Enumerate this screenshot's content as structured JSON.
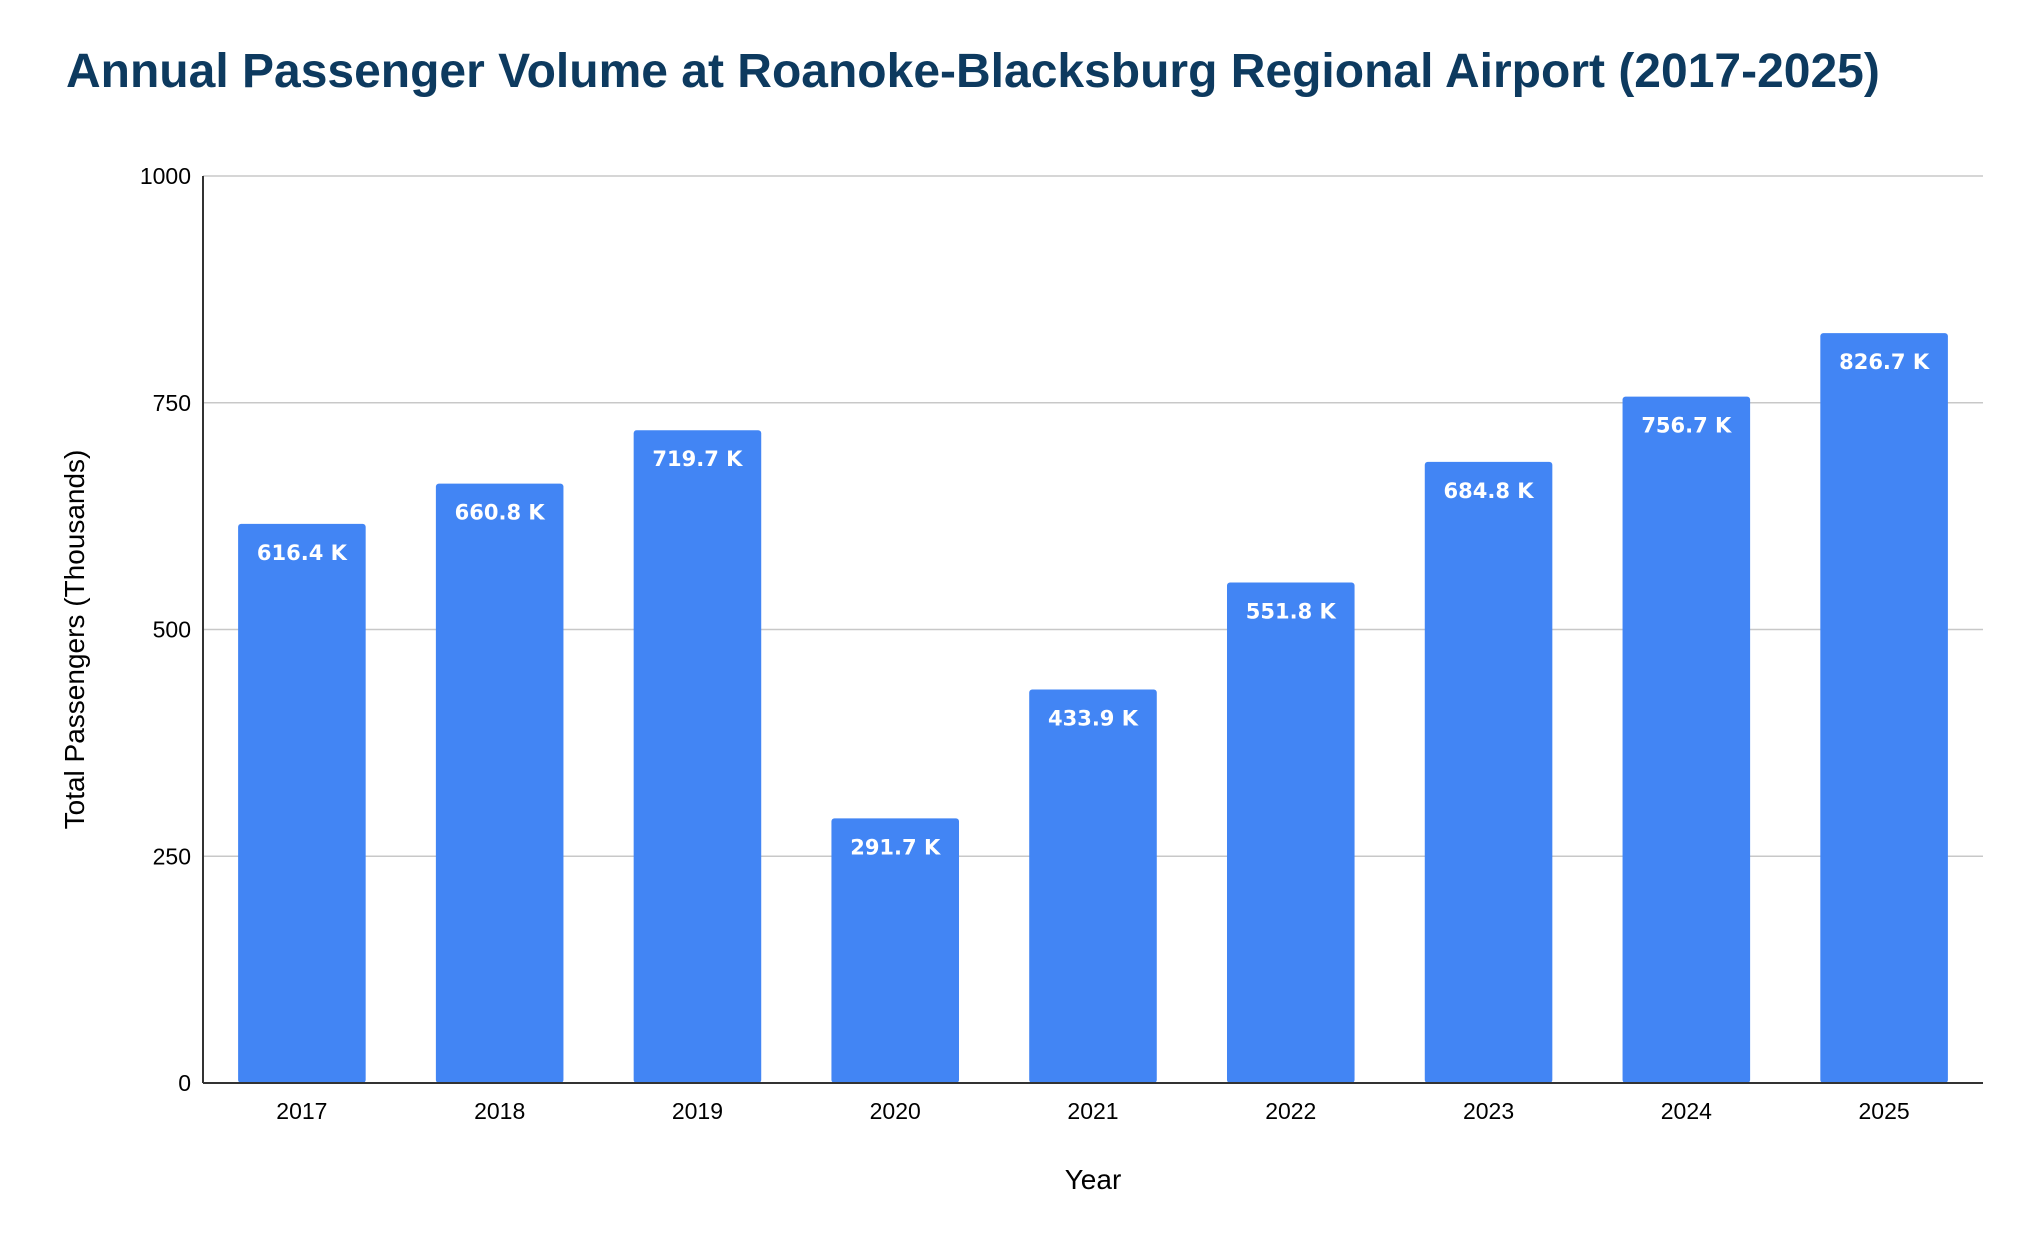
{
  "chart_data": {
    "type": "bar",
    "title": "Annual Passenger Volume at Roanoke-Blacksburg Regional Airport (2017-2025)",
    "xlabel": "Year",
    "ylabel": "Total Passengers (Thousands)",
    "categories": [
      "2017",
      "2018",
      "2019",
      "2020",
      "2021",
      "2022",
      "2023",
      "2024",
      "2025"
    ],
    "values": [
      616.4,
      660.8,
      719.7,
      291.7,
      433.9,
      551.8,
      684.8,
      756.7,
      826.7
    ],
    "data_labels": [
      "616.4 K",
      "660.8 K",
      "719.7 K",
      "291.7 K",
      "433.9 K",
      "551.8 K",
      "684.8 K",
      "756.7 K",
      "826.7 K"
    ],
    "ylim": [
      0,
      1000
    ],
    "yticks": [
      0,
      250,
      500,
      750,
      1000
    ],
    "ytick_labels": [
      "0",
      "250",
      "500",
      "750",
      "1000"
    ],
    "grid": true,
    "legend": "none",
    "colors": {
      "bar": "#4285f4",
      "title": "#0d3a5f",
      "grid": "#c8c8c8",
      "axis": "#333333",
      "bar_label": "#ffffff"
    }
  }
}
